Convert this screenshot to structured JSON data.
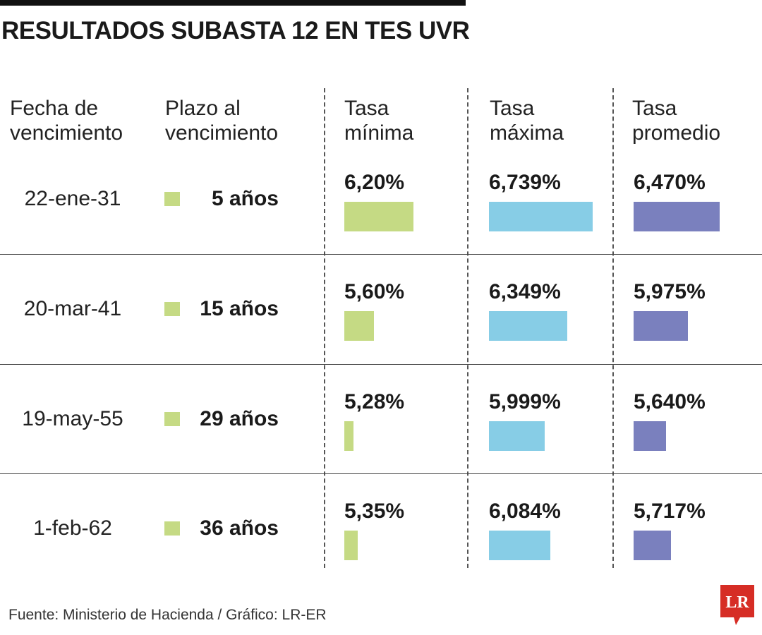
{
  "title": "RESULTADOS SUBASTA 12 EN TES UVR",
  "footer": "Fuente: Ministerio de Hacienda / Gráfico: LR-ER",
  "logo_text": "LR",
  "colors": {
    "minima": "#c5da84",
    "maxima": "#87cde6",
    "promedio": "#7a80be",
    "logo": "#d62d25"
  },
  "chart_data": {
    "type": "table",
    "title": "RESULTADOS SUBASTA 12 EN TES UVR",
    "columns": [
      "Fecha de\nvencimiento",
      "Plazo al\nvencimiento",
      "Tasa\nmínima",
      "Tasa\nmáxima",
      "Tasa\npromedio"
    ],
    "rows": [
      {
        "fecha": "22-ene-31",
        "plazo": "5 años",
        "minima": 6.2,
        "minima_label": "6,20%",
        "maxima": 6.739,
        "maxima_label": "6,739%",
        "promedio": 6.47,
        "promedio_label": "6,470%"
      },
      {
        "fecha": "20-mar-41",
        "plazo": "15 años",
        "minima": 5.6,
        "minima_label": "5,60%",
        "maxima": 6.349,
        "maxima_label": "6,349%",
        "promedio": 5.975,
        "promedio_label": "5,975%"
      },
      {
        "fecha": "19-may-55",
        "plazo": "29 años",
        "minima": 5.28,
        "minima_label": "5,28%",
        "maxima": 5.999,
        "maxima_label": "5,999%",
        "promedio": 5.64,
        "promedio_label": "5,640%"
      },
      {
        "fecha": "1-feb-62",
        "plazo": "36 años",
        "minima": 5.35,
        "minima_label": "5,35%",
        "maxima": 6.084,
        "maxima_label": "6,084%",
        "promedio": 5.717,
        "promedio_label": "5,717%"
      }
    ]
  }
}
